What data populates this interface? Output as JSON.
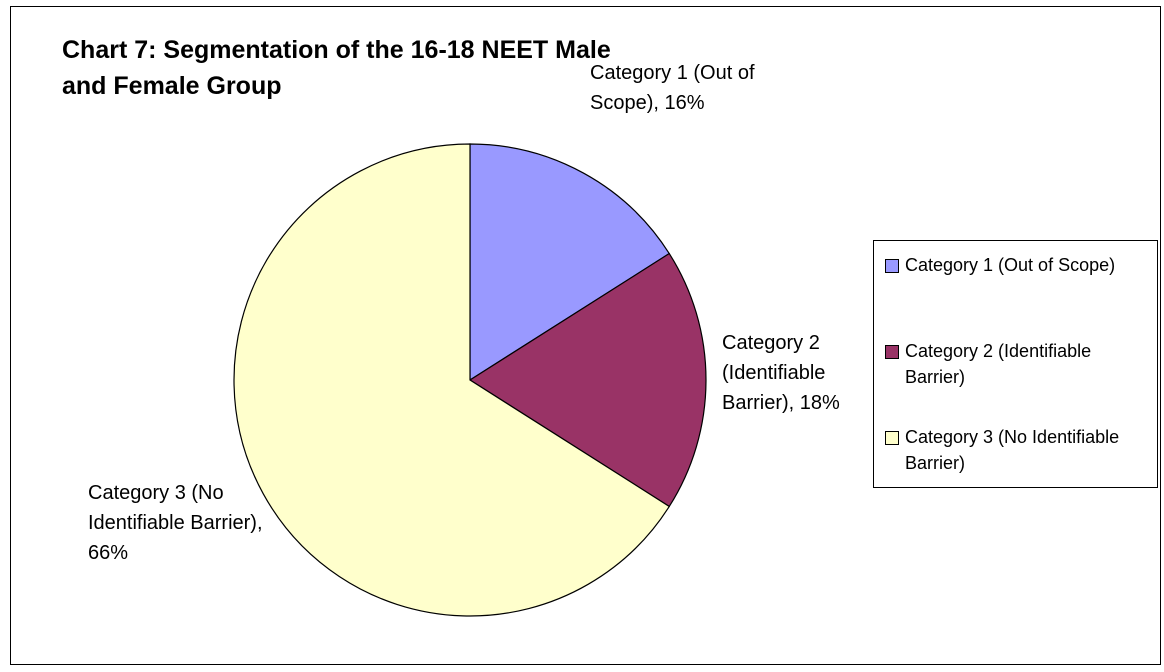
{
  "chart_data": {
    "type": "pie",
    "title": "Chart 7: Segmentation of the 16-18 NEET Male and Female Group",
    "categories": [
      "Category 1 (Out of Scope)",
      "Category 2 (Identifiable Barrier)",
      "Category 3 (No Identifiable Barrier)"
    ],
    "values": [
      16,
      18,
      66
    ],
    "value_labels": [
      "Category 1 (Out of Scope), 16%",
      "Category 2 (Identifiable Barrier), 18%",
      "Category 3 (No Identifiable Barrier), 66%"
    ],
    "colors": [
      "#9999ff",
      "#993366",
      "#ffffcc"
    ],
    "legend": "right"
  }
}
